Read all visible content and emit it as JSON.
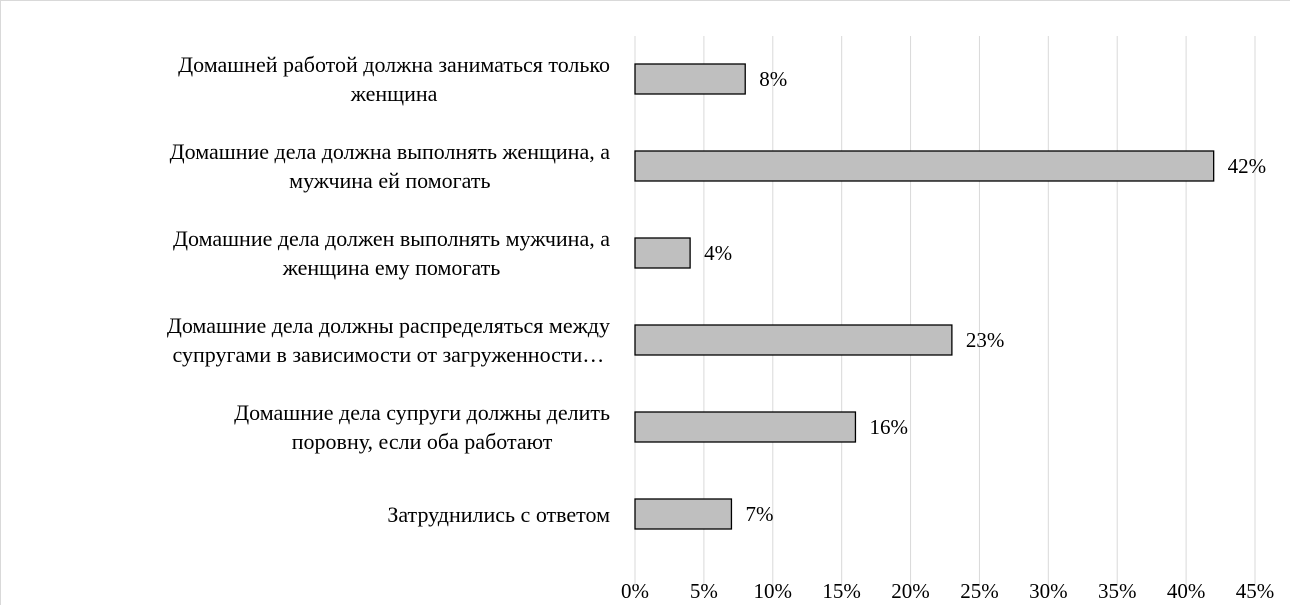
{
  "chart_data": {
    "type": "barh",
    "categories": [
      "Домашней работой должна заниматься только\nженщина",
      "Домашние дела должна выполнять женщина, а\nмужчина ей помогать",
      "Домашние дела должен выполнять мужчина, а\nженщина ему помогать",
      "Домашние дела должны распределяться между\nсупругами в зависимости от загруженности…",
      "Домашние дела супруги должны делить\nпоровну, если оба работают",
      "Затруднились с ответом"
    ],
    "values": [
      8,
      42,
      4,
      23,
      16,
      7
    ],
    "value_labels": [
      "8%",
      "42%",
      "4%",
      "23%",
      "16%",
      "7%"
    ],
    "color": "#bfbfbf",
    "xlim": [
      0,
      45
    ],
    "xticks": [
      {
        "value": 0,
        "label": "0%"
      },
      {
        "value": 5,
        "label": "5%"
      },
      {
        "value": 10,
        "label": "10%"
      },
      {
        "value": 15,
        "label": "15%"
      },
      {
        "value": 20,
        "label": "20%"
      },
      {
        "value": 25,
        "label": "25%"
      },
      {
        "value": 30,
        "label": "30%"
      },
      {
        "value": 35,
        "label": "35%"
      },
      {
        "value": 40,
        "label": "40%"
      },
      {
        "value": 45,
        "label": "45%"
      }
    ],
    "grid": true
  }
}
